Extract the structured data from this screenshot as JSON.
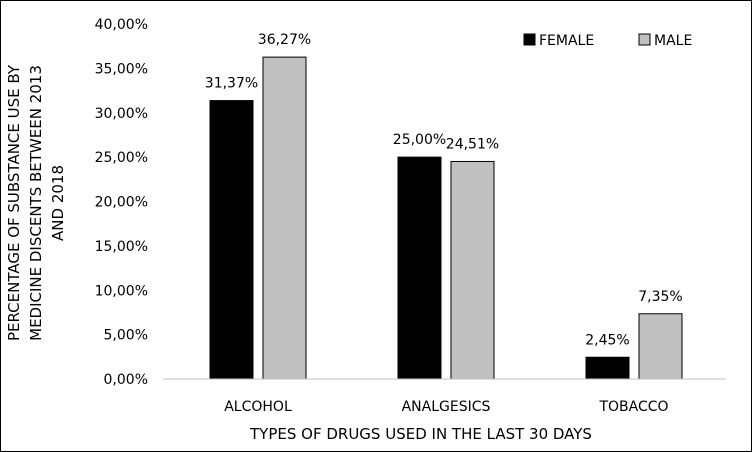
{
  "chart_data": {
    "type": "bar",
    "title": "",
    "xlabel": "TYPES OF DRUGS USED IN THE LAST 30 DAYS",
    "ylabel_lines": [
      "PERCENTAGE OF SUBSTANCE USE BY",
      "MEDICINE DISCENTS BETWEEN 2013",
      "AND 2018"
    ],
    "categories": [
      "ALCOHOL",
      "ANALGESICS",
      "TOBACCO"
    ],
    "series": [
      {
        "name": "FEMALE",
        "values": [
          31.37,
          25.0,
          2.45
        ],
        "labels": [
          "31,37%",
          "25,00%",
          "2,45%"
        ],
        "color": "#000000"
      },
      {
        "name": "MALE",
        "values": [
          36.27,
          24.51,
          7.35
        ],
        "labels": [
          "36,27%",
          "24,51%",
          "7,35%"
        ],
        "color": "#c0c0c0"
      }
    ],
    "ylim": [
      0,
      40
    ],
    "yticks": [
      0,
      5,
      10,
      15,
      20,
      25,
      30,
      35,
      40
    ],
    "ytick_labels": [
      "0,00%",
      "5,00%",
      "10,00%",
      "15,00%",
      "20,00%",
      "25,00%",
      "30,00%",
      "35,00%",
      "40,00%"
    ],
    "grid": false,
    "legend_position": "top-right"
  }
}
